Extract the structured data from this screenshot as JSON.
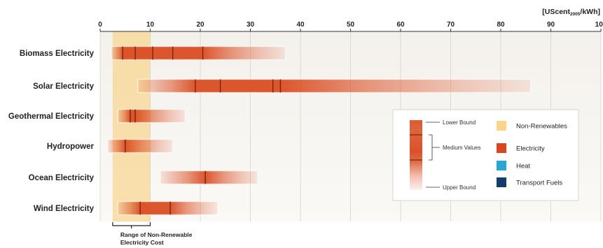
{
  "chart_data": {
    "type": "range-bar",
    "unit_label": "[UScent",
    "unit_sub": "2005",
    "unit_tail": "/kWh]",
    "x_ticks": [
      "0",
      "10",
      "20",
      "30",
      "40",
      "50",
      "60",
      "70",
      "80",
      "90",
      "100"
    ],
    "xlim": [
      0,
      100
    ],
    "grid": "vertical",
    "non_renewable_range": [
      2.5,
      10
    ],
    "non_renewable_label_line1": "Range of Non-Renewable",
    "non_renewable_label_line2": "Electricity Cost",
    "categories": [
      "Biomass Electricity",
      "Solar Electricity",
      "Geothermal Electricity",
      "Hydropower",
      "Ocean Electricity",
      "Wind Electricity"
    ],
    "series": [
      {
        "lower": 2.2,
        "upper": 37,
        "medians": [
          4.5,
          7,
          10.5,
          14.5,
          20.5
        ]
      },
      {
        "lower": 7.5,
        "upper": 86,
        "medians": [
          19,
          24,
          34.5,
          36
        ]
      },
      {
        "lower": 3.5,
        "upper": 17,
        "medians": [
          6,
          7
        ]
      },
      {
        "lower": 1.5,
        "upper": 14.5,
        "medians": [
          5
        ]
      },
      {
        "lower": 12,
        "upper": 31.5,
        "medians": [
          21
        ]
      },
      {
        "lower": 3.5,
        "upper": 23.5,
        "medians": [
          8,
          14
        ]
      }
    ],
    "colors": {
      "electricity": "#d9481c",
      "non_renewables": "#f8d48c",
      "heat": "#2aa6d4",
      "transport_fuels": "#143c6a"
    },
    "legend": {
      "placement": "bottom-right",
      "lower_bound": "Lower Bound",
      "medium_values": "Medium Values",
      "upper_bound": "Upper Bound",
      "items": [
        {
          "label": "Non-Renewables",
          "color": "#f8d48c"
        },
        {
          "label": "Electricity",
          "color": "#d9481c"
        },
        {
          "label": "Heat",
          "color": "#2aa6d4"
        },
        {
          "label": "Transport Fuels",
          "color": "#143c6a"
        }
      ]
    }
  }
}
